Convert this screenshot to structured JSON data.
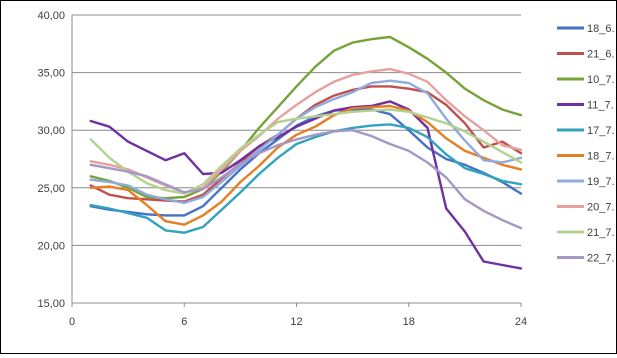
{
  "chart_data": {
    "type": "line",
    "title": "",
    "xlabel": "",
    "ylabel": "",
    "xlim": [
      0,
      24
    ],
    "ylim": [
      15,
      40
    ],
    "xticks": [
      "0",
      "6",
      "12",
      "18",
      "24"
    ],
    "yticks": [
      "15,00",
      "20,00",
      "25,00",
      "30,00",
      "35,00",
      "40,00"
    ],
    "grid": "horizontal",
    "legend_position": "right",
    "x": [
      1,
      2,
      3,
      4,
      5,
      6,
      7,
      8,
      9,
      10,
      11,
      12,
      13,
      14,
      15,
      16,
      17,
      18,
      19,
      20,
      21,
      22,
      23,
      24
    ],
    "series": [
      {
        "name": "18_6.",
        "color": "#4472c4",
        "values": [
          23.4,
          23.1,
          22.9,
          22.7,
          22.6,
          22.6,
          23.4,
          25.0,
          26.6,
          28.0,
          29.2,
          30.4,
          31.2,
          31.7,
          31.8,
          31.8,
          31.4,
          30.0,
          28.5,
          27.5,
          27.0,
          26.3,
          25.5,
          24.5
        ]
      },
      {
        "name": "21_6.",
        "color": "#c0504d",
        "values": [
          25.2,
          24.4,
          24.1,
          24.0,
          23.9,
          23.8,
          24.4,
          25.8,
          27.2,
          28.6,
          29.6,
          31.0,
          32.2,
          33.0,
          33.5,
          33.8,
          33.8,
          33.6,
          33.3,
          32.2,
          30.6,
          28.5,
          29.0,
          28.0
        ]
      },
      {
        "name": "10_7.",
        "color": "#77a33a",
        "values": [
          26.0,
          25.6,
          25.0,
          24.2,
          24.1,
          24.2,
          24.9,
          26.4,
          28.2,
          30.2,
          32.0,
          33.8,
          35.5,
          36.9,
          37.6,
          37.9,
          38.1,
          37.2,
          36.2,
          35.0,
          33.6,
          32.6,
          31.8,
          31.3
        ]
      },
      {
        "name": "11_7.",
        "color": "#7030a0",
        "values": [
          30.8,
          30.3,
          29.0,
          28.2,
          27.4,
          28.0,
          26.2,
          26.3,
          27.4,
          28.6,
          29.4,
          30.3,
          31.0,
          31.7,
          32.0,
          32.1,
          32.5,
          31.8,
          30.2,
          23.2,
          21.2,
          18.6,
          18.3,
          18.0
        ]
      },
      {
        "name": "17_7.",
        "color": "#31a3bd",
        "values": [
          23.5,
          23.2,
          22.8,
          22.4,
          21.3,
          21.1,
          21.6,
          23.1,
          24.6,
          26.2,
          27.6,
          28.8,
          29.4,
          29.9,
          30.2,
          30.4,
          30.5,
          30.2,
          29.4,
          27.9,
          26.7,
          26.2,
          25.6,
          25.3
        ]
      },
      {
        "name": "18_7.",
        "color": "#e67e22",
        "values": [
          25.0,
          25.1,
          24.8,
          23.5,
          22.1,
          21.8,
          22.6,
          23.8,
          25.5,
          26.9,
          28.5,
          29.6,
          30.3,
          31.3,
          31.9,
          32.0,
          32.1,
          31.7,
          30.7,
          29.3,
          28.2,
          27.6,
          27.0,
          26.6
        ]
      },
      {
        "name": "19_7.",
        "color": "#8faadc",
        "values": [
          25.7,
          25.5,
          25.2,
          24.4,
          24.0,
          23.7,
          24.2,
          25.5,
          26.9,
          28.3,
          29.6,
          31.0,
          32.0,
          32.7,
          33.3,
          34.1,
          34.3,
          34.1,
          33.2,
          31.0,
          29.1,
          27.4,
          27.2,
          27.6
        ]
      },
      {
        "name": "20_7.",
        "color": "#e6a19f",
        "values": [
          27.3,
          27.0,
          26.6,
          25.9,
          25.2,
          24.6,
          25.0,
          26.6,
          28.2,
          29.5,
          31.0,
          32.2,
          33.3,
          34.2,
          34.8,
          35.1,
          35.3,
          34.9,
          34.2,
          32.6,
          31.2,
          30.0,
          28.7,
          28.3
        ]
      },
      {
        "name": "21_7.",
        "color": "#b3d18f",
        "values": [
          29.2,
          27.6,
          26.4,
          25.4,
          24.8,
          24.5,
          25.3,
          26.9,
          28.4,
          29.6,
          30.7,
          31.0,
          31.2,
          31.4,
          31.6,
          31.7,
          31.8,
          31.6,
          31.1,
          30.6,
          29.9,
          29.0,
          28.1,
          27.2
        ]
      },
      {
        "name": "22_7.",
        "color": "#a597c7",
        "values": [
          27.0,
          26.7,
          26.4,
          26.0,
          25.3,
          24.6,
          24.9,
          25.9,
          27.1,
          28.0,
          28.7,
          29.2,
          29.6,
          29.9,
          30.0,
          29.5,
          28.8,
          28.2,
          27.2,
          25.9,
          24.0,
          23.0,
          22.2,
          21.5
        ]
      }
    ]
  }
}
